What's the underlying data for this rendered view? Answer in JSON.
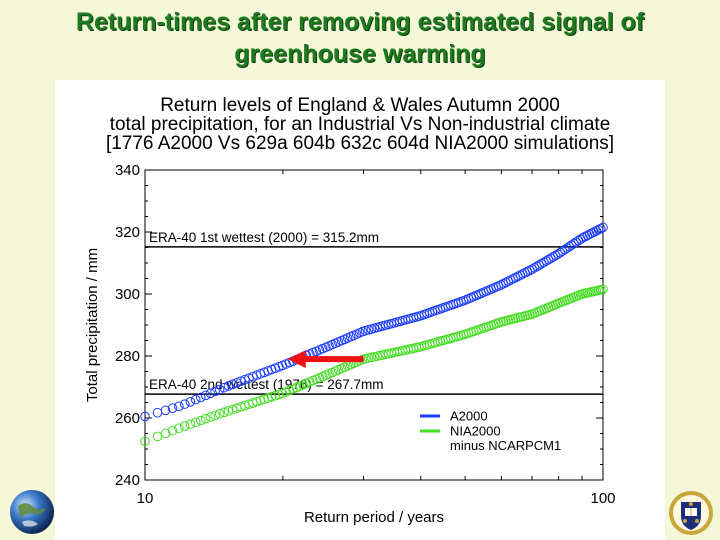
{
  "slide": {
    "title_line1": "Return-times after removing estimated signal of",
    "title_line2": "greenhouse warming"
  },
  "figure": {
    "title_line1": "Return levels of England & Wales Autumn 2000",
    "title_line2": "total precipitation, for an Industrial Vs Non-industrial climate",
    "title_line3": "[1776 A2000 Vs 629a 604b 632c 604d NIA2000 simulations]"
  },
  "chart_data": {
    "type": "scatter",
    "xlabel": "Return period / years",
    "ylabel": "Total precipitation / mm",
    "xscale": "log",
    "xlim": [
      10,
      100
    ],
    "ylim": [
      240,
      340
    ],
    "xticks": [
      "10",
      "100"
    ],
    "yticks": [
      "240",
      "260",
      "280",
      "300",
      "320",
      "340"
    ],
    "reference_lines": [
      {
        "value": 315.2,
        "label": "ERA-40 1st wettest (2000) = 315.2mm"
      },
      {
        "value": 267.7,
        "label": "ERA-40 2nd wettest (1976) = 267.7mm"
      }
    ],
    "series": [
      {
        "name": "A2000",
        "color": "#1a3cff",
        "x": [
          10,
          12,
          15,
          20,
          25,
          30,
          40,
          50,
          60,
          70,
          80,
          90,
          100
        ],
        "y": [
          260.5,
          264,
          270,
          277,
          283,
          288,
          293,
          298,
          303,
          308,
          313,
          318,
          321.5
        ]
      },
      {
        "name": "NIA2000",
        "color": "#44dd22",
        "x": [
          10,
          12,
          15,
          20,
          25,
          30,
          40,
          50,
          60,
          70,
          80,
          90,
          100
        ],
        "y": [
          252.5,
          257,
          262,
          268,
          274,
          279,
          283,
          287,
          291,
          293.5,
          297,
          300,
          301.5
        ]
      }
    ],
    "legend": {
      "position": "bottom-right",
      "entries": [
        "A2000",
        "NIA2000"
      ],
      "note": "minus NCARPCM1"
    },
    "annotation": {
      "type": "arrow",
      "color": "#ee1111",
      "from": [
        30,
        279
      ],
      "to": [
        20.5,
        279
      ]
    }
  }
}
